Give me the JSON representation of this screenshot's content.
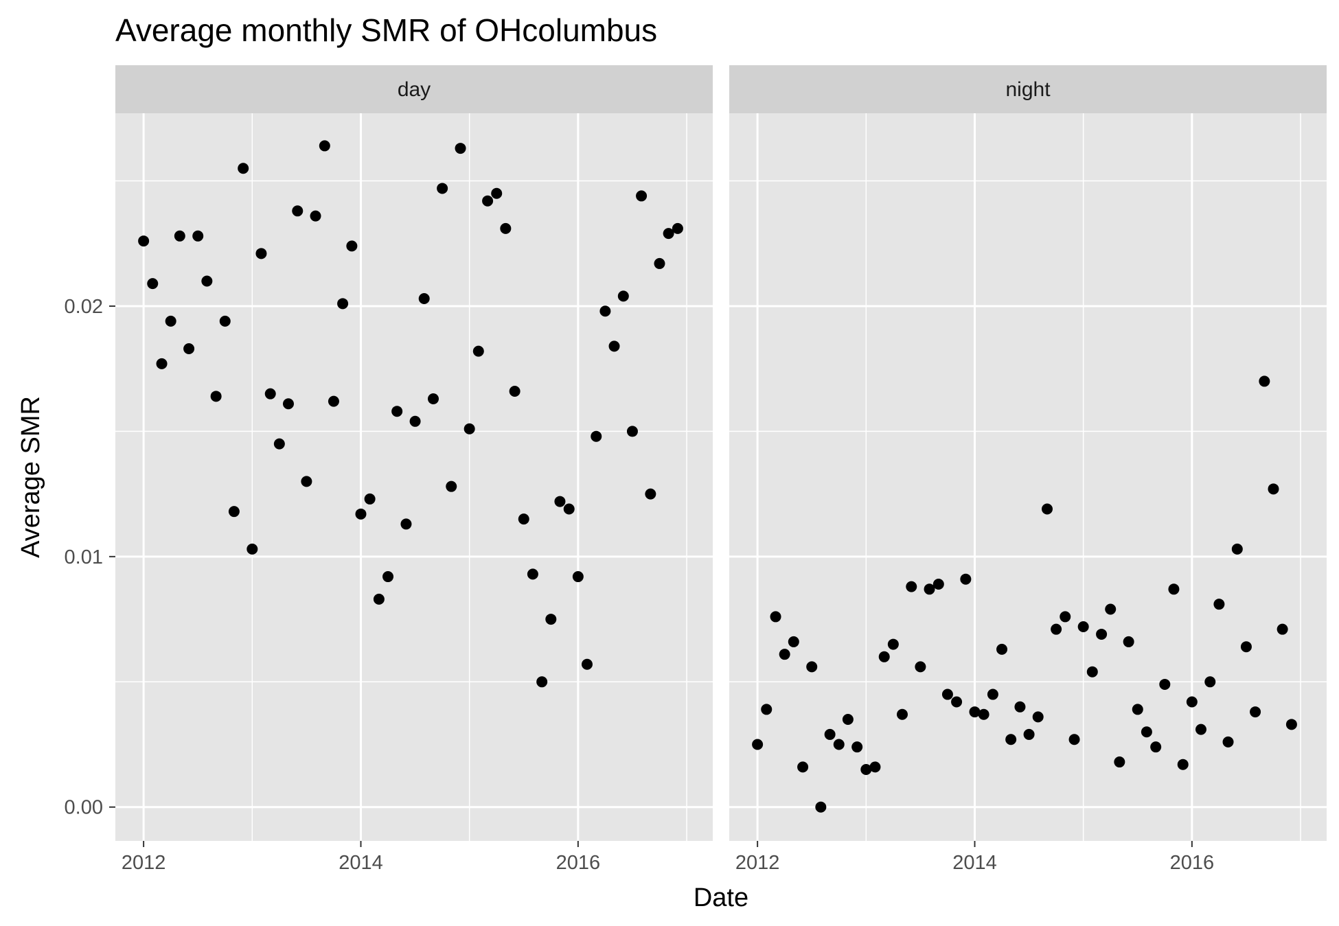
{
  "chart_data": {
    "type": "scatter",
    "title": "Average monthly SMR of OHcolumbus",
    "xlabel": "Date",
    "ylabel": "Average SMR",
    "xlim": [
      2011.74,
      2017.24
    ],
    "ylim": [
      -0.00135,
      0.0277
    ],
    "x_ticks": [
      2012,
      2014,
      2016
    ],
    "x_tick_labels": [
      "2012",
      "2014",
      "2016"
    ],
    "x_minor": [
      2013,
      2015,
      2017
    ],
    "y_ticks": [
      0.0,
      0.01,
      0.02
    ],
    "y_tick_labels": [
      "0.00",
      "0.01",
      "0.02"
    ],
    "y_minor": [
      0.005,
      0.015,
      0.025
    ],
    "grid": true,
    "panel_background": "#e5e5e5",
    "strip_background": "#d1d1d1",
    "point_color": "#000000",
    "facets": [
      {
        "label": "day",
        "x": [
          2012.0,
          2012.083,
          2012.167,
          2012.25,
          2012.333,
          2012.417,
          2012.5,
          2012.583,
          2012.667,
          2012.75,
          2012.833,
          2012.917,
          2013.0,
          2013.083,
          2013.167,
          2013.25,
          2013.333,
          2013.417,
          2013.5,
          2013.583,
          2013.667,
          2013.75,
          2013.833,
          2013.917,
          2014.0,
          2014.083,
          2014.167,
          2014.25,
          2014.333,
          2014.417,
          2014.5,
          2014.583,
          2014.667,
          2014.75,
          2014.833,
          2014.917,
          2015.0,
          2015.083,
          2015.167,
          2015.25,
          2015.333,
          2015.417,
          2015.5,
          2015.583,
          2015.667,
          2015.75,
          2015.833,
          2015.917,
          2016.0,
          2016.083,
          2016.167,
          2016.25,
          2016.333,
          2016.417,
          2016.5,
          2016.583,
          2016.667,
          2016.75,
          2016.833,
          2016.917
        ],
        "y": [
          0.0226,
          0.0209,
          0.0177,
          0.0194,
          0.0228,
          0.0183,
          0.0228,
          0.021,
          0.0164,
          0.0194,
          0.0118,
          0.0255,
          0.0103,
          0.0221,
          0.0165,
          0.0145,
          0.0161,
          0.0238,
          0.013,
          0.0236,
          0.0264,
          0.0162,
          0.0201,
          0.0224,
          0.0117,
          0.0123,
          0.0083,
          0.0092,
          0.0158,
          0.0113,
          0.0154,
          0.0203,
          0.0163,
          0.0247,
          0.0128,
          0.0263,
          0.0151,
          0.0182,
          0.0242,
          0.0245,
          0.0231,
          0.0166,
          0.0115,
          0.0093,
          0.005,
          0.0075,
          0.0122,
          0.0119,
          0.0092,
          0.0057,
          0.0148,
          0.0198,
          0.0184,
          0.0204,
          0.015,
          0.0244,
          0.0125,
          0.0217,
          0.0229,
          0.0231
        ]
      },
      {
        "label": "night",
        "x": [
          2012.0,
          2012.083,
          2012.167,
          2012.25,
          2012.333,
          2012.417,
          2012.5,
          2012.583,
          2012.667,
          2012.75,
          2012.833,
          2012.917,
          2013.0,
          2013.083,
          2013.167,
          2013.25,
          2013.333,
          2013.417,
          2013.5,
          2013.583,
          2013.667,
          2013.75,
          2013.833,
          2013.917,
          2014.0,
          2014.083,
          2014.167,
          2014.25,
          2014.333,
          2014.417,
          2014.5,
          2014.583,
          2014.667,
          2014.75,
          2014.833,
          2014.917,
          2015.0,
          2015.083,
          2015.167,
          2015.25,
          2015.333,
          2015.417,
          2015.5,
          2015.583,
          2015.667,
          2015.75,
          2015.833,
          2015.917,
          2016.0,
          2016.083,
          2016.167,
          2016.25,
          2016.333,
          2016.417,
          2016.5,
          2016.583,
          2016.667,
          2016.75,
          2016.833,
          2016.917
        ],
        "y": [
          0.0025,
          0.0039,
          0.0076,
          0.0061,
          0.0066,
          0.0016,
          0.0056,
          0.0,
          0.0029,
          0.0025,
          0.0035,
          0.0024,
          0.0015,
          0.0016,
          0.006,
          0.0065,
          0.0037,
          0.0088,
          0.0056,
          0.0087,
          0.0089,
          0.0045,
          0.0042,
          0.0091,
          0.0038,
          0.0037,
          0.0045,
          0.0063,
          0.0027,
          0.004,
          0.0029,
          0.0036,
          0.0119,
          0.0071,
          0.0076,
          0.0027,
          0.0072,
          0.0054,
          0.0069,
          0.0079,
          0.0018,
          0.0066,
          0.0039,
          0.003,
          0.0024,
          0.0049,
          0.0087,
          0.0017,
          0.0042,
          0.0031,
          0.005,
          0.0081,
          0.0026,
          0.0103,
          0.0064,
          0.0038,
          0.017,
          0.0127,
          0.0071,
          0.0033
        ]
      }
    ]
  }
}
